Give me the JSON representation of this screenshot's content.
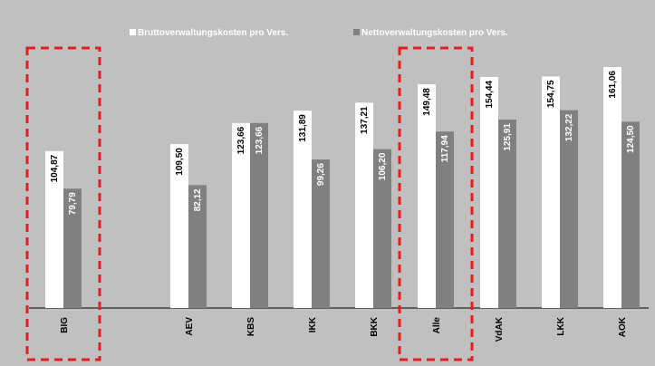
{
  "chart_data": {
    "type": "bar",
    "categories": [
      "BIG",
      "AEV",
      "KBS",
      "IKK",
      "BKK",
      "Alle",
      "VdAK",
      "LKK",
      "AOK"
    ],
    "series": [
      {
        "name": "Bruttoverwaltungskosten pro Vers.",
        "values": [
          104.87,
          109.5,
          123.66,
          131.89,
          137.21,
          149.48,
          154.44,
          154.75,
          161.06
        ],
        "labels": [
          "104,87",
          "109,50",
          "123,66",
          "131,89",
          "137,21",
          "149,48",
          "154,44",
          "154,75",
          "161,06"
        ],
        "color": "#ffffff"
      },
      {
        "name": "Nettoverwaltungskosten pro Vers.",
        "values": [
          79.79,
          82.12,
          123.66,
          99.26,
          106.2,
          117.94,
          125.91,
          132.22,
          124.5
        ],
        "labels": [
          "79,79",
          "82,12",
          "123,66",
          "99,26",
          "106,20",
          "117,94",
          "125,91",
          "132,22",
          "124,50"
        ],
        "color": "#808080"
      }
    ],
    "highlighted_categories": [
      "BIG",
      "Alle"
    ],
    "ylim": [
      0,
      170
    ],
    "grid": false,
    "legend_position": "top-center",
    "plot_background": "#c0c0c0",
    "highlight_color": "#e02020",
    "label_rotation": "vertical"
  }
}
